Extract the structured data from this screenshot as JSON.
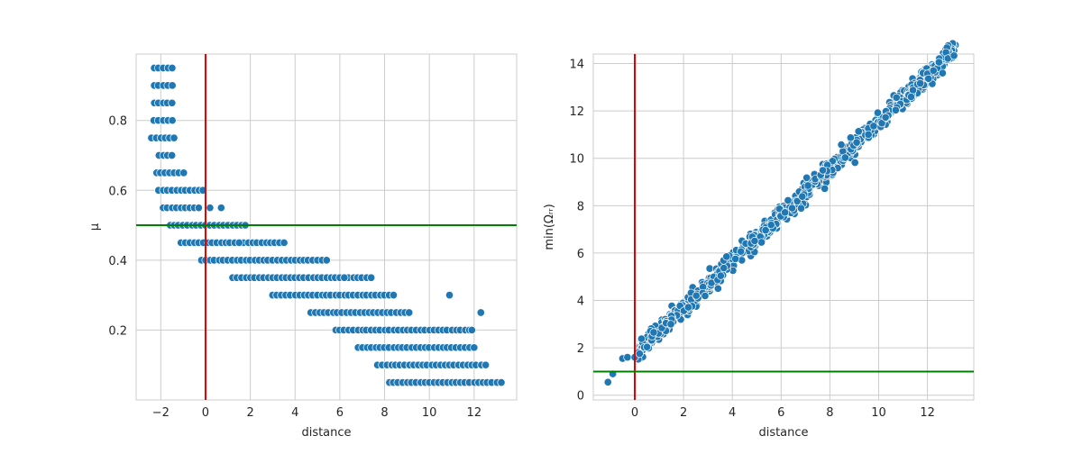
{
  "chart_data": [
    {
      "type": "scatter",
      "xlabel": "distance",
      "ylabel": "μ",
      "xlim": [
        -3.1,
        13.9
      ],
      "ylim": [
        0.0,
        0.99
      ],
      "xticks": [
        -2,
        0,
        2,
        4,
        6,
        8,
        10,
        12
      ],
      "xtick_labels": [
        "−2",
        "0",
        "2",
        "4",
        "6",
        "8",
        "10",
        "12"
      ],
      "yticks": [
        0.2,
        0.4,
        0.6,
        0.8
      ],
      "ytick_labels": [
        "0.2",
        "0.4",
        "0.6",
        "0.8"
      ],
      "grid": true,
      "vline": {
        "x": 0,
        "color": "#e00000"
      },
      "hline": {
        "y": 0.5,
        "color": "#008000"
      },
      "marker_color": "#1f77b4",
      "bands": [
        {
          "y": 0.95,
          "x": [
            -2.3,
            -1.4
          ]
        },
        {
          "y": 0.9,
          "x": [
            -2.3,
            -1.4
          ]
        },
        {
          "y": 0.85,
          "x": [
            -2.3,
            -1.4
          ]
        },
        {
          "y": 0.8,
          "x": [
            -2.3,
            -1.4
          ]
        },
        {
          "y": 0.75,
          "x": [
            -2.4,
            -1.4
          ]
        },
        {
          "y": 0.7,
          "x": [
            -2.1,
            -1.4
          ]
        },
        {
          "y": 0.65,
          "x": [
            -2.2,
            -1.0
          ]
        },
        {
          "y": 0.6,
          "x": [
            -2.1,
            -0.1
          ]
        },
        {
          "y": 0.55,
          "x": [
            -1.9,
            -0.2
          ]
        },
        {
          "y": 0.5,
          "x": [
            -1.6,
            1.9
          ]
        },
        {
          "y": 0.45,
          "x": [
            -1.1,
            3.6
          ]
        },
        {
          "y": 0.4,
          "x": [
            -0.2,
            5.5
          ]
        },
        {
          "y": 0.35,
          "x": [
            1.2,
            7.2
          ]
        },
        {
          "y": 0.3,
          "x": [
            3.0,
            8.5
          ]
        },
        {
          "y": 0.25,
          "x": [
            4.7,
            9.2
          ]
        },
        {
          "y": 0.2,
          "x": [
            5.8,
            11.8
          ]
        },
        {
          "y": 0.15,
          "x": [
            6.8,
            12.0
          ]
        },
        {
          "y": 0.1,
          "x": [
            7.7,
            12.5
          ]
        },
        {
          "y": 0.05,
          "x": [
            8.2,
            13.2
          ]
        }
      ],
      "outliers": [
        {
          "x": 0.2,
          "y": 0.55
        },
        {
          "x": 0.7,
          "y": 0.55
        },
        {
          "x": 1.5,
          "y": 0.45
        },
        {
          "x": 6.2,
          "y": 0.35
        },
        {
          "x": 7.4,
          "y": 0.35
        },
        {
          "x": 8.4,
          "y": 0.3
        },
        {
          "x": 10.9,
          "y": 0.3
        },
        {
          "x": 12.3,
          "y": 0.25
        },
        {
          "x": 11.9,
          "y": 0.2
        }
      ]
    },
    {
      "type": "scatter",
      "xlabel": "distance",
      "ylabel": "min(Ωᵣᵣ)",
      "xlim": [
        -1.7,
        13.9
      ],
      "ylim": [
        -0.2,
        14.4
      ],
      "xticks": [
        0,
        2,
        4,
        6,
        8,
        10,
        12
      ],
      "xtick_labels": [
        "0",
        "2",
        "4",
        "6",
        "8",
        "10",
        "12"
      ],
      "yticks": [
        0,
        2,
        4,
        6,
        8,
        10,
        12,
        14
      ],
      "ytick_labels": [
        "0",
        "2",
        "4",
        "6",
        "8",
        "10",
        "12",
        "14"
      ],
      "grid": true,
      "vline": {
        "x": 0,
        "color": "#e00000"
      },
      "hline": {
        "y": 1,
        "color": "#008000"
      },
      "marker_color": "#1f77b4",
      "trend": {
        "slope": 0.985,
        "intercept": 1.7,
        "x_range": [
          0.1,
          13.2
        ],
        "spread": 0.35
      },
      "extra_points": [
        {
          "x": -1.1,
          "y": 0.55
        },
        {
          "x": -0.9,
          "y": 0.9
        },
        {
          "x": -0.5,
          "y": 1.55
        },
        {
          "x": -0.3,
          "y": 1.6
        },
        {
          "x": 0.0,
          "y": 1.6
        },
        {
          "x": 0.2,
          "y": 1.75
        }
      ]
    }
  ]
}
